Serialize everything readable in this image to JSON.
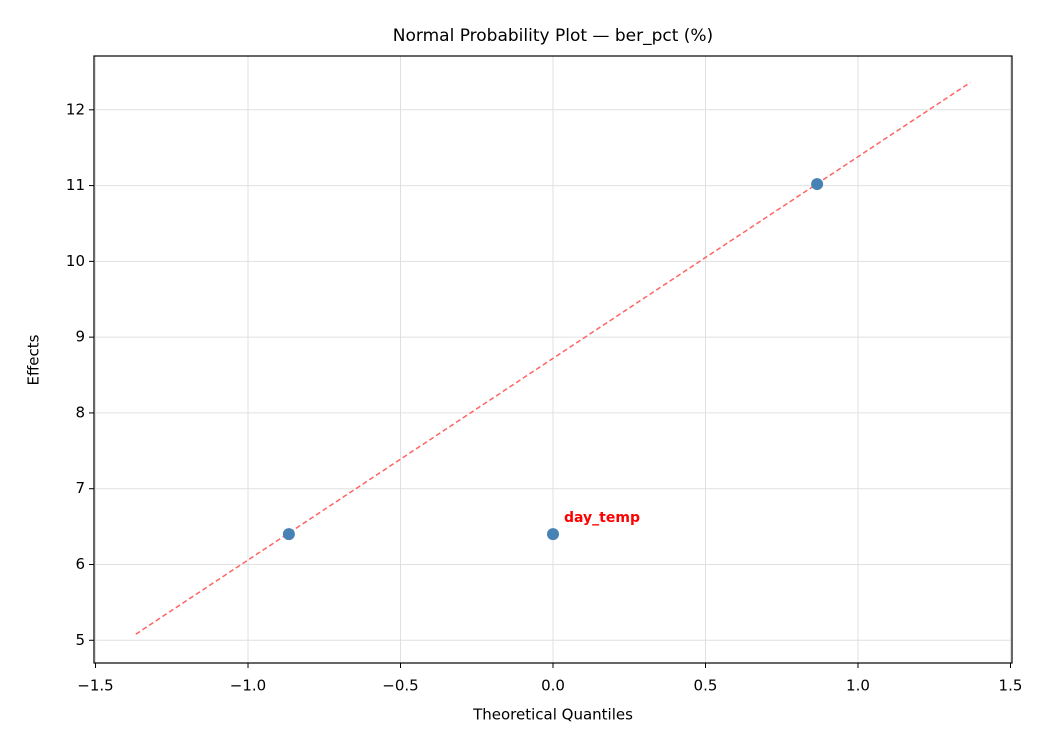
{
  "chart_data": {
    "type": "scatter",
    "title": "Normal Probability Plot — ber_pct (%)",
    "x_label": "Theoretical Quantiles",
    "y_label": "Effects",
    "xlim": [
      -1.505,
      1.505
    ],
    "ylim": [
      4.7,
      12.71
    ],
    "xticks": [
      {
        "value": -1.5,
        "label": "−1.5"
      },
      {
        "value": -1.0,
        "label": "−1.0"
      },
      {
        "value": -0.5,
        "label": "−0.5"
      },
      {
        "value": 0,
        "label": "0.0"
      },
      0.5,
      {
        "value": 1.0,
        "label": "1.0"
      },
      1.5
    ],
    "yticks": [
      5,
      6,
      7,
      8,
      9,
      10,
      11,
      12
    ],
    "grid": true,
    "series": [
      {
        "type": "scatter",
        "color": "#4682b4",
        "x": [
          -0.866,
          0,
          0.866
        ],
        "values": [
          6.4,
          6.4,
          11.02
        ],
        "point_labels": [
          null,
          "day_temp",
          null
        ],
        "point_label_color": "#ff0000"
      },
      {
        "type": "line",
        "color": "#ff6464",
        "dashed": true,
        "x": [
          -1.368,
          1.368
        ],
        "values": [
          5.08,
          12.36
        ]
      }
    ]
  }
}
